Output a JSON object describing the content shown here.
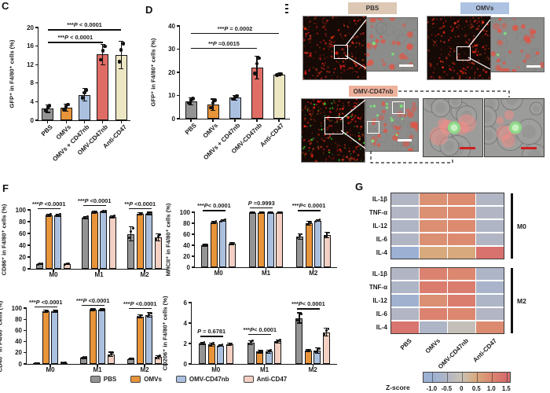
{
  "figure": {
    "panel_c_label": "C",
    "panel_d_label": "D",
    "panel_f_label": "F",
    "panel_g_label": "G"
  },
  "colors": {
    "pbs_gray": "#949494",
    "omvs_orange": "#e8943a",
    "omv_cd47nb_blue": "#abc0df",
    "omv_cd47nb_red": "#e06c66",
    "anti_cd47_cream": "#ece6c3",
    "anti_cd47_pink": "#f3d0c3"
  },
  "legend": {
    "items": [
      {
        "label": "PBS",
        "color": "#949494"
      },
      {
        "label": "OMVs",
        "color": "#e8943a"
      },
      {
        "label": "OMV-CD47nb",
        "color": "#abc0df"
      },
      {
        "label": "Anti-CD47",
        "color": "#f3d0c3"
      }
    ]
  },
  "microscopy": {
    "groups": [
      {
        "label": "PBS",
        "label_bg": "#dcc8b4"
      },
      {
        "label": "OMVs",
        "label_bg": "#aec3e2"
      },
      {
        "label": "OMV-CD47nb",
        "label_bg": "#eeb19c"
      }
    ]
  },
  "chart_data": [
    {
      "id": "C",
      "type": "bar",
      "ylabel": "GFP⁺ in F4/80⁺ cells (%)",
      "ylim": [
        0,
        20
      ],
      "yticks": [
        0,
        4,
        8,
        12,
        16,
        20
      ],
      "categories": [
        "PBS",
        "OMVs",
        "OMVs + CD47nb",
        "OMV-CD47nb",
        "Anti-CD47"
      ],
      "values": [
        2.5,
        2.7,
        5.5,
        14.2,
        14.1
      ],
      "errors": [
        0.8,
        0.8,
        1.3,
        2.2,
        3.0
      ],
      "bar_colors": [
        "#949494",
        "#e8943a",
        "#abc0df",
        "#e06c66",
        "#ece6c3"
      ],
      "significance": [
        {
          "text": "***P < 0.0001",
          "from": 0,
          "to": 4,
          "y": 19.6
        },
        {
          "text": "***P < 0.0001",
          "from": 0,
          "to": 3,
          "y": 16.9
        }
      ]
    },
    {
      "id": "D",
      "type": "bar",
      "ylabel": "GFP⁺ in F4/80⁺ cells (%)",
      "ylim": [
        0,
        40
      ],
      "yticks": [
        0,
        10,
        20,
        30,
        40
      ],
      "categories": [
        "PBS",
        "OMVs",
        "OMVs + CD47nb",
        "OMV-CD47nb",
        "Anti-CD47"
      ],
      "values": [
        7.5,
        6.0,
        9.0,
        22.0,
        19.0
      ],
      "errors": [
        1.5,
        2.5,
        1.0,
        5.0,
        0.5
      ],
      "bar_colors": [
        "#949494",
        "#e8943a",
        "#abc0df",
        "#e06c66",
        "#ece6c3"
      ],
      "significance": [
        {
          "text": "***P = 0.0002",
          "from": 0,
          "to": 4,
          "y": 37
        },
        {
          "text": "**P =0.0015",
          "from": 0,
          "to": 3,
          "y": 30.5
        }
      ]
    },
    {
      "id": "F1",
      "type": "grouped-bar",
      "ylabel": "CD86⁺ in F4/80⁺ cells (%)",
      "ylim": [
        0,
        100
      ],
      "yticks": [
        0,
        20,
        40,
        60,
        80,
        100
      ],
      "categories": [
        "M0",
        "M1",
        "M2"
      ],
      "series": [
        {
          "name": "PBS",
          "color": "#949494",
          "values": [
            8,
            87,
            59
          ],
          "errors": [
            1,
            2,
            12
          ]
        },
        {
          "name": "OMVs",
          "color": "#e8943a",
          "values": [
            91,
            96,
            93
          ],
          "errors": [
            2,
            1.5,
            2
          ]
        },
        {
          "name": "OMV-CD47nb",
          "color": "#abc0df",
          "values": [
            91,
            97,
            94
          ],
          "errors": [
            2,
            1.5,
            2
          ]
        },
        {
          "name": "Anti-CD47",
          "color": "#f3d0c3",
          "values": [
            8,
            88,
            53
          ],
          "errors": [
            1,
            2,
            6
          ]
        }
      ],
      "significance": [
        {
          "text": "***P <0.0001",
          "group": 0,
          "y": 103
        },
        {
          "text": "***P <0.0001",
          "group": 1,
          "y": 108
        },
        {
          "text": "**P <0.0001",
          "group": 2,
          "y": 103
        }
      ]
    },
    {
      "id": "F2",
      "type": "grouped-bar",
      "ylabel": "MHCII⁺ in F4/80⁺ cells (%)",
      "ylim": [
        0,
        100
      ],
      "yticks": [
        0,
        20,
        40,
        60,
        80,
        100
      ],
      "categories": [
        "M0",
        "M1",
        "M2"
      ],
      "series": [
        {
          "name": "PBS",
          "color": "#949494",
          "values": [
            40,
            99,
            56
          ],
          "errors": [
            1.5,
            1,
            5
          ]
        },
        {
          "name": "OMVs",
          "color": "#e8943a",
          "values": [
            82,
            99,
            80
          ],
          "errors": [
            2,
            1,
            3
          ]
        },
        {
          "name": "OMV-CD47nb",
          "color": "#abc0df",
          "values": [
            85,
            99,
            85
          ],
          "errors": [
            2,
            1,
            2
          ]
        },
        {
          "name": "Anti-CD47",
          "color": "#f3d0c3",
          "values": [
            43,
            99,
            59
          ],
          "errors": [
            1.5,
            1,
            5
          ]
        }
      ],
      "significance": [
        {
          "text": "***P< 0.0001",
          "group": 0,
          "y": 104
        },
        {
          "text": "P =0.9993",
          "group": 1,
          "y": 109
        },
        {
          "text": "***P< 0.0001",
          "group": 2,
          "y": 104
        }
      ]
    },
    {
      "id": "F3",
      "type": "grouped-bar",
      "ylabel": "CD40⁺ in F4/80⁺ cells (%)",
      "ylim": [
        0,
        100
      ],
      "yticks": [
        0,
        20,
        40,
        60,
        80,
        100
      ],
      "categories": [
        "M0",
        "M1",
        "M2"
      ],
      "series": [
        {
          "name": "PBS",
          "color": "#949494",
          "values": [
            1,
            11,
            9
          ],
          "errors": [
            0.5,
            1.5,
            1
          ]
        },
        {
          "name": "OMVs",
          "color": "#e8943a",
          "values": [
            94,
            97,
            85
          ],
          "errors": [
            2,
            1.5,
            3
          ]
        },
        {
          "name": "OMV-CD47nb",
          "color": "#abc0df",
          "values": [
            94,
            97,
            88
          ],
          "errors": [
            2,
            1.5,
            4
          ]
        },
        {
          "name": "Anti-CD47",
          "color": "#f3d0c3",
          "values": [
            2,
            17,
            12
          ],
          "errors": [
            0.5,
            4,
            3
          ]
        }
      ],
      "significance": [
        {
          "text": "***P <0.0001",
          "group": 0,
          "y": 103
        },
        {
          "text": "***P <0.0001",
          "group": 1,
          "y": 106
        },
        {
          "text": "***P <0.0001",
          "group": 2,
          "y": 100
        }
      ]
    },
    {
      "id": "F4",
      "type": "grouped-bar",
      "ylabel": "CD206⁺ in F4/80⁺ cells (%)",
      "ylim": [
        0,
        6
      ],
      "yticks": [
        0,
        2,
        4,
        6
      ],
      "categories": [
        "M0",
        "M1",
        "M2"
      ],
      "series": [
        {
          "name": "PBS",
          "color": "#949494",
          "values": [
            2.0,
            2.1,
            4.5
          ],
          "errors": [
            0.12,
            0.2,
            0.5
          ]
        },
        {
          "name": "OMVs",
          "color": "#e8943a",
          "values": [
            1.9,
            1.2,
            1.3
          ],
          "errors": [
            0.15,
            0.12,
            0.1
          ]
        },
        {
          "name": "OMV-CD47nb",
          "color": "#abc0df",
          "values": [
            1.8,
            1.2,
            1.3
          ],
          "errors": [
            0.1,
            0.15,
            0.25
          ]
        },
        {
          "name": "Anti-CD47",
          "color": "#f3d0c3",
          "values": [
            1.9,
            2.2,
            3.1
          ],
          "errors": [
            0.12,
            0.15,
            0.4
          ]
        }
      ],
      "significance": [
        {
          "text": "P = 0.6781",
          "group": 0,
          "y": 2.75
        },
        {
          "text": "***P< 0.0001",
          "group": 1,
          "y": 2.95
        },
        {
          "text": "***P< 0.0001",
          "group": 2,
          "y": 5.45
        }
      ]
    },
    {
      "id": "G",
      "type": "heatmap",
      "rows": [
        "IL-1β",
        "TNF-α",
        "IL-12",
        "IL-6",
        "IL-4"
      ],
      "cols": [
        "PBS",
        "OMVs",
        "OMV-CD47nb",
        "Anti-CD47"
      ],
      "blocks": [
        {
          "name": "M0",
          "z": [
            [
              -0.5,
              0.85,
              0.95,
              -0.5
            ],
            [
              -0.5,
              0.9,
              0.95,
              -0.5
            ],
            [
              -0.55,
              0.9,
              0.95,
              -0.55
            ],
            [
              -0.5,
              0.9,
              0.95,
              -0.5
            ],
            [
              -1.0,
              0.5,
              0.5,
              1.4
            ]
          ]
        },
        {
          "name": "M2",
          "z": [
            [
              -0.5,
              1.1,
              1.0,
              -0.6
            ],
            [
              -0.6,
              1.2,
              1.2,
              -0.7
            ],
            [
              -0.9,
              0.9,
              1.2,
              -0.6
            ],
            [
              -0.5,
              1.1,
              1.0,
              -0.5
            ],
            [
              1.35,
              -0.6,
              -0.1,
              0.95
            ]
          ]
        }
      ],
      "colormap": [
        {
          "z": -1.0,
          "color": "#9bb0d3"
        },
        {
          "z": -0.5,
          "color": "#b2b6c4"
        },
        {
          "z": 0,
          "color": "#c8c2b6"
        },
        {
          "z": 0.5,
          "color": "#d8a97d"
        },
        {
          "z": 1.0,
          "color": "#dc8870"
        },
        {
          "z": 1.5,
          "color": "#d66d6e"
        }
      ],
      "colorbar": {
        "label": "Z-score",
        "ticks": [
          -1.0,
          -0.5,
          0,
          0.5,
          1.0,
          1.5
        ]
      }
    }
  ]
}
